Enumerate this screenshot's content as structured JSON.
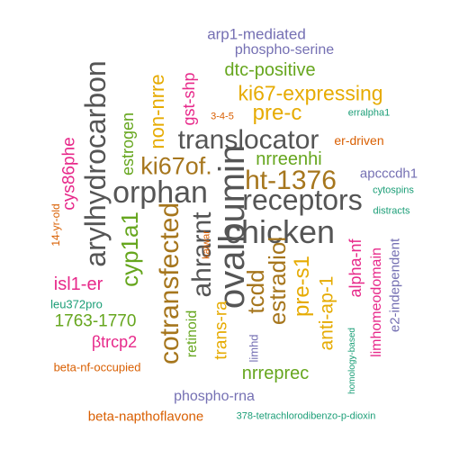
{
  "words": [
    {
      "text": "arp1-mediated",
      "color": "#7570b3",
      "rot": false
    },
    {
      "text": "phospho-serine",
      "color": "#7570b3",
      "rot": false
    },
    {
      "text": "arylhydrocarbon",
      "color": "#555555",
      "rot": true
    },
    {
      "text": "dtc-positive",
      "color": "#66a61e",
      "rot": false
    },
    {
      "text": "non-nrre",
      "color": "#e6ab02",
      "rot": true
    },
    {
      "text": "gst-shp",
      "color": "#e7298a",
      "rot": true
    },
    {
      "text": "ki67-expressing",
      "color": "#e6ab02",
      "rot": false
    },
    {
      "text": "estrogen",
      "color": "#66a61e",
      "rot": true
    },
    {
      "text": "pre-c",
      "color": "#e6ab02",
      "rot": false
    },
    {
      "text": "3-4-5",
      "color": "#d95f02",
      "rot": false
    },
    {
      "text": "erralpha1",
      "color": "#1b9e77",
      "rot": false
    },
    {
      "text": "translocator",
      "color": "#555555",
      "rot": false
    },
    {
      "text": "er-driven",
      "color": "#d95f02",
      "rot": false
    },
    {
      "text": "nrreenhi",
      "color": "#66a61e",
      "rot": false
    },
    {
      "text": "cys86phe",
      "color": "#e7298a",
      "rot": true
    },
    {
      "text": "ki67of.",
      "color": "#a6761d",
      "rot": false
    },
    {
      "text": "ovalbumin",
      "color": "#555555",
      "rot": true
    },
    {
      "text": "ht-1376",
      "color": "#a6761d",
      "rot": false
    },
    {
      "text": "apcccdh1",
      "color": "#7570b3",
      "rot": false
    },
    {
      "text": "orphan",
      "color": "#555555",
      "rot": false
    },
    {
      "text": "receptors",
      "color": "#555555",
      "rot": false
    },
    {
      "text": "cytospins",
      "color": "#1b9e77",
      "rot": false
    },
    {
      "text": "14-yr-old",
      "color": "#d95f02",
      "rot": true
    },
    {
      "text": "distracts",
      "color": "#1b9e77",
      "rot": false
    },
    {
      "text": "chicken",
      "color": "#555555",
      "rot": false
    },
    {
      "text": "cotransfected",
      "color": "#a6761d",
      "rot": true
    },
    {
      "text": "ahrarnt",
      "color": "#555555",
      "rot": true
    },
    {
      "text": "cyp1a1",
      "color": "#66a61e",
      "rot": true
    },
    {
      "text": "kaiwar",
      "color": "#d95f02",
      "rot": true
    },
    {
      "text": "alpha-nf",
      "color": "#e7298a",
      "rot": true
    },
    {
      "text": "isl1-er",
      "color": "#e7298a",
      "rot": false
    },
    {
      "text": "estradiol",
      "color": "#a6761d",
      "rot": true
    },
    {
      "text": "tcdd",
      "color": "#a6761d",
      "rot": true
    },
    {
      "text": "pre-s1",
      "color": "#e6ab02",
      "rot": true
    },
    {
      "text": "leu372pro",
      "color": "#1b9e77",
      "rot": false
    },
    {
      "text": "1763-1770",
      "color": "#66a61e",
      "rot": false
    },
    {
      "text": "anti-ap-1",
      "color": "#e6ab02",
      "rot": true
    },
    {
      "text": "limhomeodomain",
      "color": "#e7298a",
      "rot": true
    },
    {
      "text": "e2-independent",
      "color": "#7570b3",
      "rot": true
    },
    {
      "text": "trans-ra",
      "color": "#e6ab02",
      "rot": true
    },
    {
      "text": "βtrcp2",
      "color": "#e7298a",
      "rot": false
    },
    {
      "text": "retinoid",
      "color": "#66a61e",
      "rot": true
    },
    {
      "text": "limhd",
      "color": "#7570b3",
      "rot": true
    },
    {
      "text": "homology-based",
      "color": "#1b9e77",
      "rot": true
    },
    {
      "text": "beta-nf-occupied",
      "color": "#d95f02",
      "rot": false
    },
    {
      "text": "nrreprec",
      "color": "#66a61e",
      "rot": false
    },
    {
      "text": "phospho-rna",
      "color": "#7570b3",
      "rot": false
    },
    {
      "text": "beta-napthoflavone",
      "color": "#d95f02",
      "rot": false
    },
    {
      "text": "378-tetrachlorodibenzo-p-dioxin",
      "color": "#1b9e77",
      "rot": false
    }
  ]
}
